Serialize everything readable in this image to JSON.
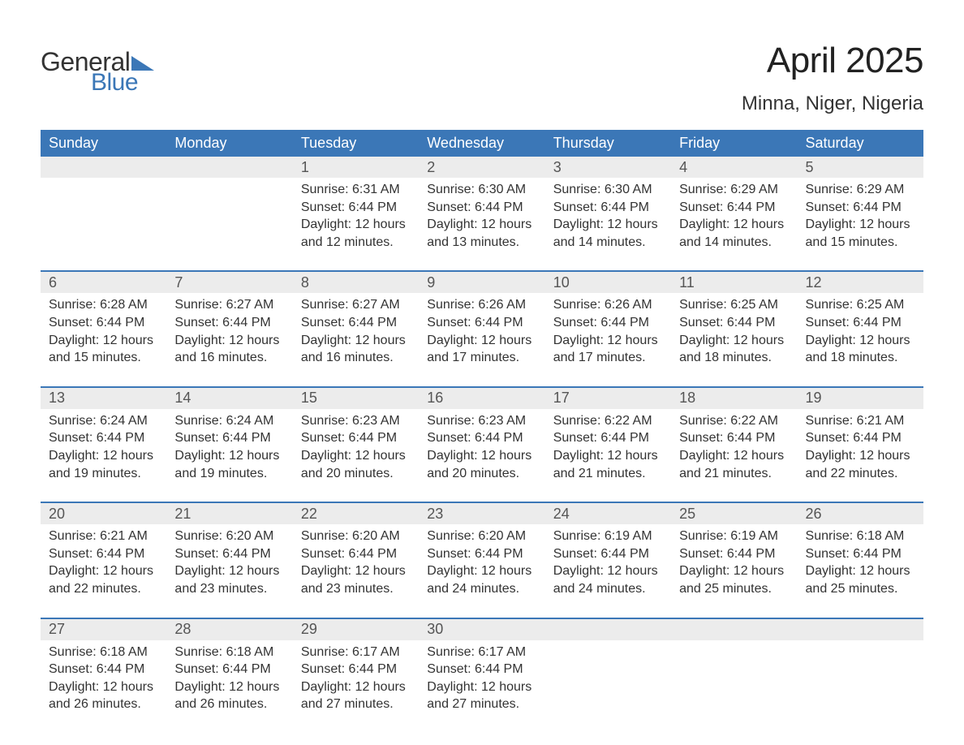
{
  "logo": {
    "text1": "General",
    "text2": "Blue"
  },
  "title": {
    "month": "April 2025",
    "location": "Minna, Niger, Nigeria"
  },
  "colors": {
    "accent": "#3b77b7",
    "header_text": "#ffffff",
    "daybar_bg": "#ececec",
    "daybar_text": "#555555",
    "body_text": "#333333",
    "background": "#ffffff"
  },
  "weekdays": [
    "Sunday",
    "Monday",
    "Tuesday",
    "Wednesday",
    "Thursday",
    "Friday",
    "Saturday"
  ],
  "weeks": [
    [
      {
        "n": "",
        "sunrise": "",
        "sunset": "",
        "daylight": ""
      },
      {
        "n": "",
        "sunrise": "",
        "sunset": "",
        "daylight": ""
      },
      {
        "n": "1",
        "sunrise": "Sunrise: 6:31 AM",
        "sunset": "Sunset: 6:44 PM",
        "daylight": "Daylight: 12 hours and 12 minutes."
      },
      {
        "n": "2",
        "sunrise": "Sunrise: 6:30 AM",
        "sunset": "Sunset: 6:44 PM",
        "daylight": "Daylight: 12 hours and 13 minutes."
      },
      {
        "n": "3",
        "sunrise": "Sunrise: 6:30 AM",
        "sunset": "Sunset: 6:44 PM",
        "daylight": "Daylight: 12 hours and 14 minutes."
      },
      {
        "n": "4",
        "sunrise": "Sunrise: 6:29 AM",
        "sunset": "Sunset: 6:44 PM",
        "daylight": "Daylight: 12 hours and 14 minutes."
      },
      {
        "n": "5",
        "sunrise": "Sunrise: 6:29 AM",
        "sunset": "Sunset: 6:44 PM",
        "daylight": "Daylight: 12 hours and 15 minutes."
      }
    ],
    [
      {
        "n": "6",
        "sunrise": "Sunrise: 6:28 AM",
        "sunset": "Sunset: 6:44 PM",
        "daylight": "Daylight: 12 hours and 15 minutes."
      },
      {
        "n": "7",
        "sunrise": "Sunrise: 6:27 AM",
        "sunset": "Sunset: 6:44 PM",
        "daylight": "Daylight: 12 hours and 16 minutes."
      },
      {
        "n": "8",
        "sunrise": "Sunrise: 6:27 AM",
        "sunset": "Sunset: 6:44 PM",
        "daylight": "Daylight: 12 hours and 16 minutes."
      },
      {
        "n": "9",
        "sunrise": "Sunrise: 6:26 AM",
        "sunset": "Sunset: 6:44 PM",
        "daylight": "Daylight: 12 hours and 17 minutes."
      },
      {
        "n": "10",
        "sunrise": "Sunrise: 6:26 AM",
        "sunset": "Sunset: 6:44 PM",
        "daylight": "Daylight: 12 hours and 17 minutes."
      },
      {
        "n": "11",
        "sunrise": "Sunrise: 6:25 AM",
        "sunset": "Sunset: 6:44 PM",
        "daylight": "Daylight: 12 hours and 18 minutes."
      },
      {
        "n": "12",
        "sunrise": "Sunrise: 6:25 AM",
        "sunset": "Sunset: 6:44 PM",
        "daylight": "Daylight: 12 hours and 18 minutes."
      }
    ],
    [
      {
        "n": "13",
        "sunrise": "Sunrise: 6:24 AM",
        "sunset": "Sunset: 6:44 PM",
        "daylight": "Daylight: 12 hours and 19 minutes."
      },
      {
        "n": "14",
        "sunrise": "Sunrise: 6:24 AM",
        "sunset": "Sunset: 6:44 PM",
        "daylight": "Daylight: 12 hours and 19 minutes."
      },
      {
        "n": "15",
        "sunrise": "Sunrise: 6:23 AM",
        "sunset": "Sunset: 6:44 PM",
        "daylight": "Daylight: 12 hours and 20 minutes."
      },
      {
        "n": "16",
        "sunrise": "Sunrise: 6:23 AM",
        "sunset": "Sunset: 6:44 PM",
        "daylight": "Daylight: 12 hours and 20 minutes."
      },
      {
        "n": "17",
        "sunrise": "Sunrise: 6:22 AM",
        "sunset": "Sunset: 6:44 PM",
        "daylight": "Daylight: 12 hours and 21 minutes."
      },
      {
        "n": "18",
        "sunrise": "Sunrise: 6:22 AM",
        "sunset": "Sunset: 6:44 PM",
        "daylight": "Daylight: 12 hours and 21 minutes."
      },
      {
        "n": "19",
        "sunrise": "Sunrise: 6:21 AM",
        "sunset": "Sunset: 6:44 PM",
        "daylight": "Daylight: 12 hours and 22 minutes."
      }
    ],
    [
      {
        "n": "20",
        "sunrise": "Sunrise: 6:21 AM",
        "sunset": "Sunset: 6:44 PM",
        "daylight": "Daylight: 12 hours and 22 minutes."
      },
      {
        "n": "21",
        "sunrise": "Sunrise: 6:20 AM",
        "sunset": "Sunset: 6:44 PM",
        "daylight": "Daylight: 12 hours and 23 minutes."
      },
      {
        "n": "22",
        "sunrise": "Sunrise: 6:20 AM",
        "sunset": "Sunset: 6:44 PM",
        "daylight": "Daylight: 12 hours and 23 minutes."
      },
      {
        "n": "23",
        "sunrise": "Sunrise: 6:20 AM",
        "sunset": "Sunset: 6:44 PM",
        "daylight": "Daylight: 12 hours and 24 minutes."
      },
      {
        "n": "24",
        "sunrise": "Sunrise: 6:19 AM",
        "sunset": "Sunset: 6:44 PM",
        "daylight": "Daylight: 12 hours and 24 minutes."
      },
      {
        "n": "25",
        "sunrise": "Sunrise: 6:19 AM",
        "sunset": "Sunset: 6:44 PM",
        "daylight": "Daylight: 12 hours and 25 minutes."
      },
      {
        "n": "26",
        "sunrise": "Sunrise: 6:18 AM",
        "sunset": "Sunset: 6:44 PM",
        "daylight": "Daylight: 12 hours and 25 minutes."
      }
    ],
    [
      {
        "n": "27",
        "sunrise": "Sunrise: 6:18 AM",
        "sunset": "Sunset: 6:44 PM",
        "daylight": "Daylight: 12 hours and 26 minutes."
      },
      {
        "n": "28",
        "sunrise": "Sunrise: 6:18 AM",
        "sunset": "Sunset: 6:44 PM",
        "daylight": "Daylight: 12 hours and 26 minutes."
      },
      {
        "n": "29",
        "sunrise": "Sunrise: 6:17 AM",
        "sunset": "Sunset: 6:44 PM",
        "daylight": "Daylight: 12 hours and 27 minutes."
      },
      {
        "n": "30",
        "sunrise": "Sunrise: 6:17 AM",
        "sunset": "Sunset: 6:44 PM",
        "daylight": "Daylight: 12 hours and 27 minutes."
      },
      {
        "n": "",
        "sunrise": "",
        "sunset": "",
        "daylight": ""
      },
      {
        "n": "",
        "sunrise": "",
        "sunset": "",
        "daylight": ""
      },
      {
        "n": "",
        "sunrise": "",
        "sunset": "",
        "daylight": ""
      }
    ]
  ]
}
